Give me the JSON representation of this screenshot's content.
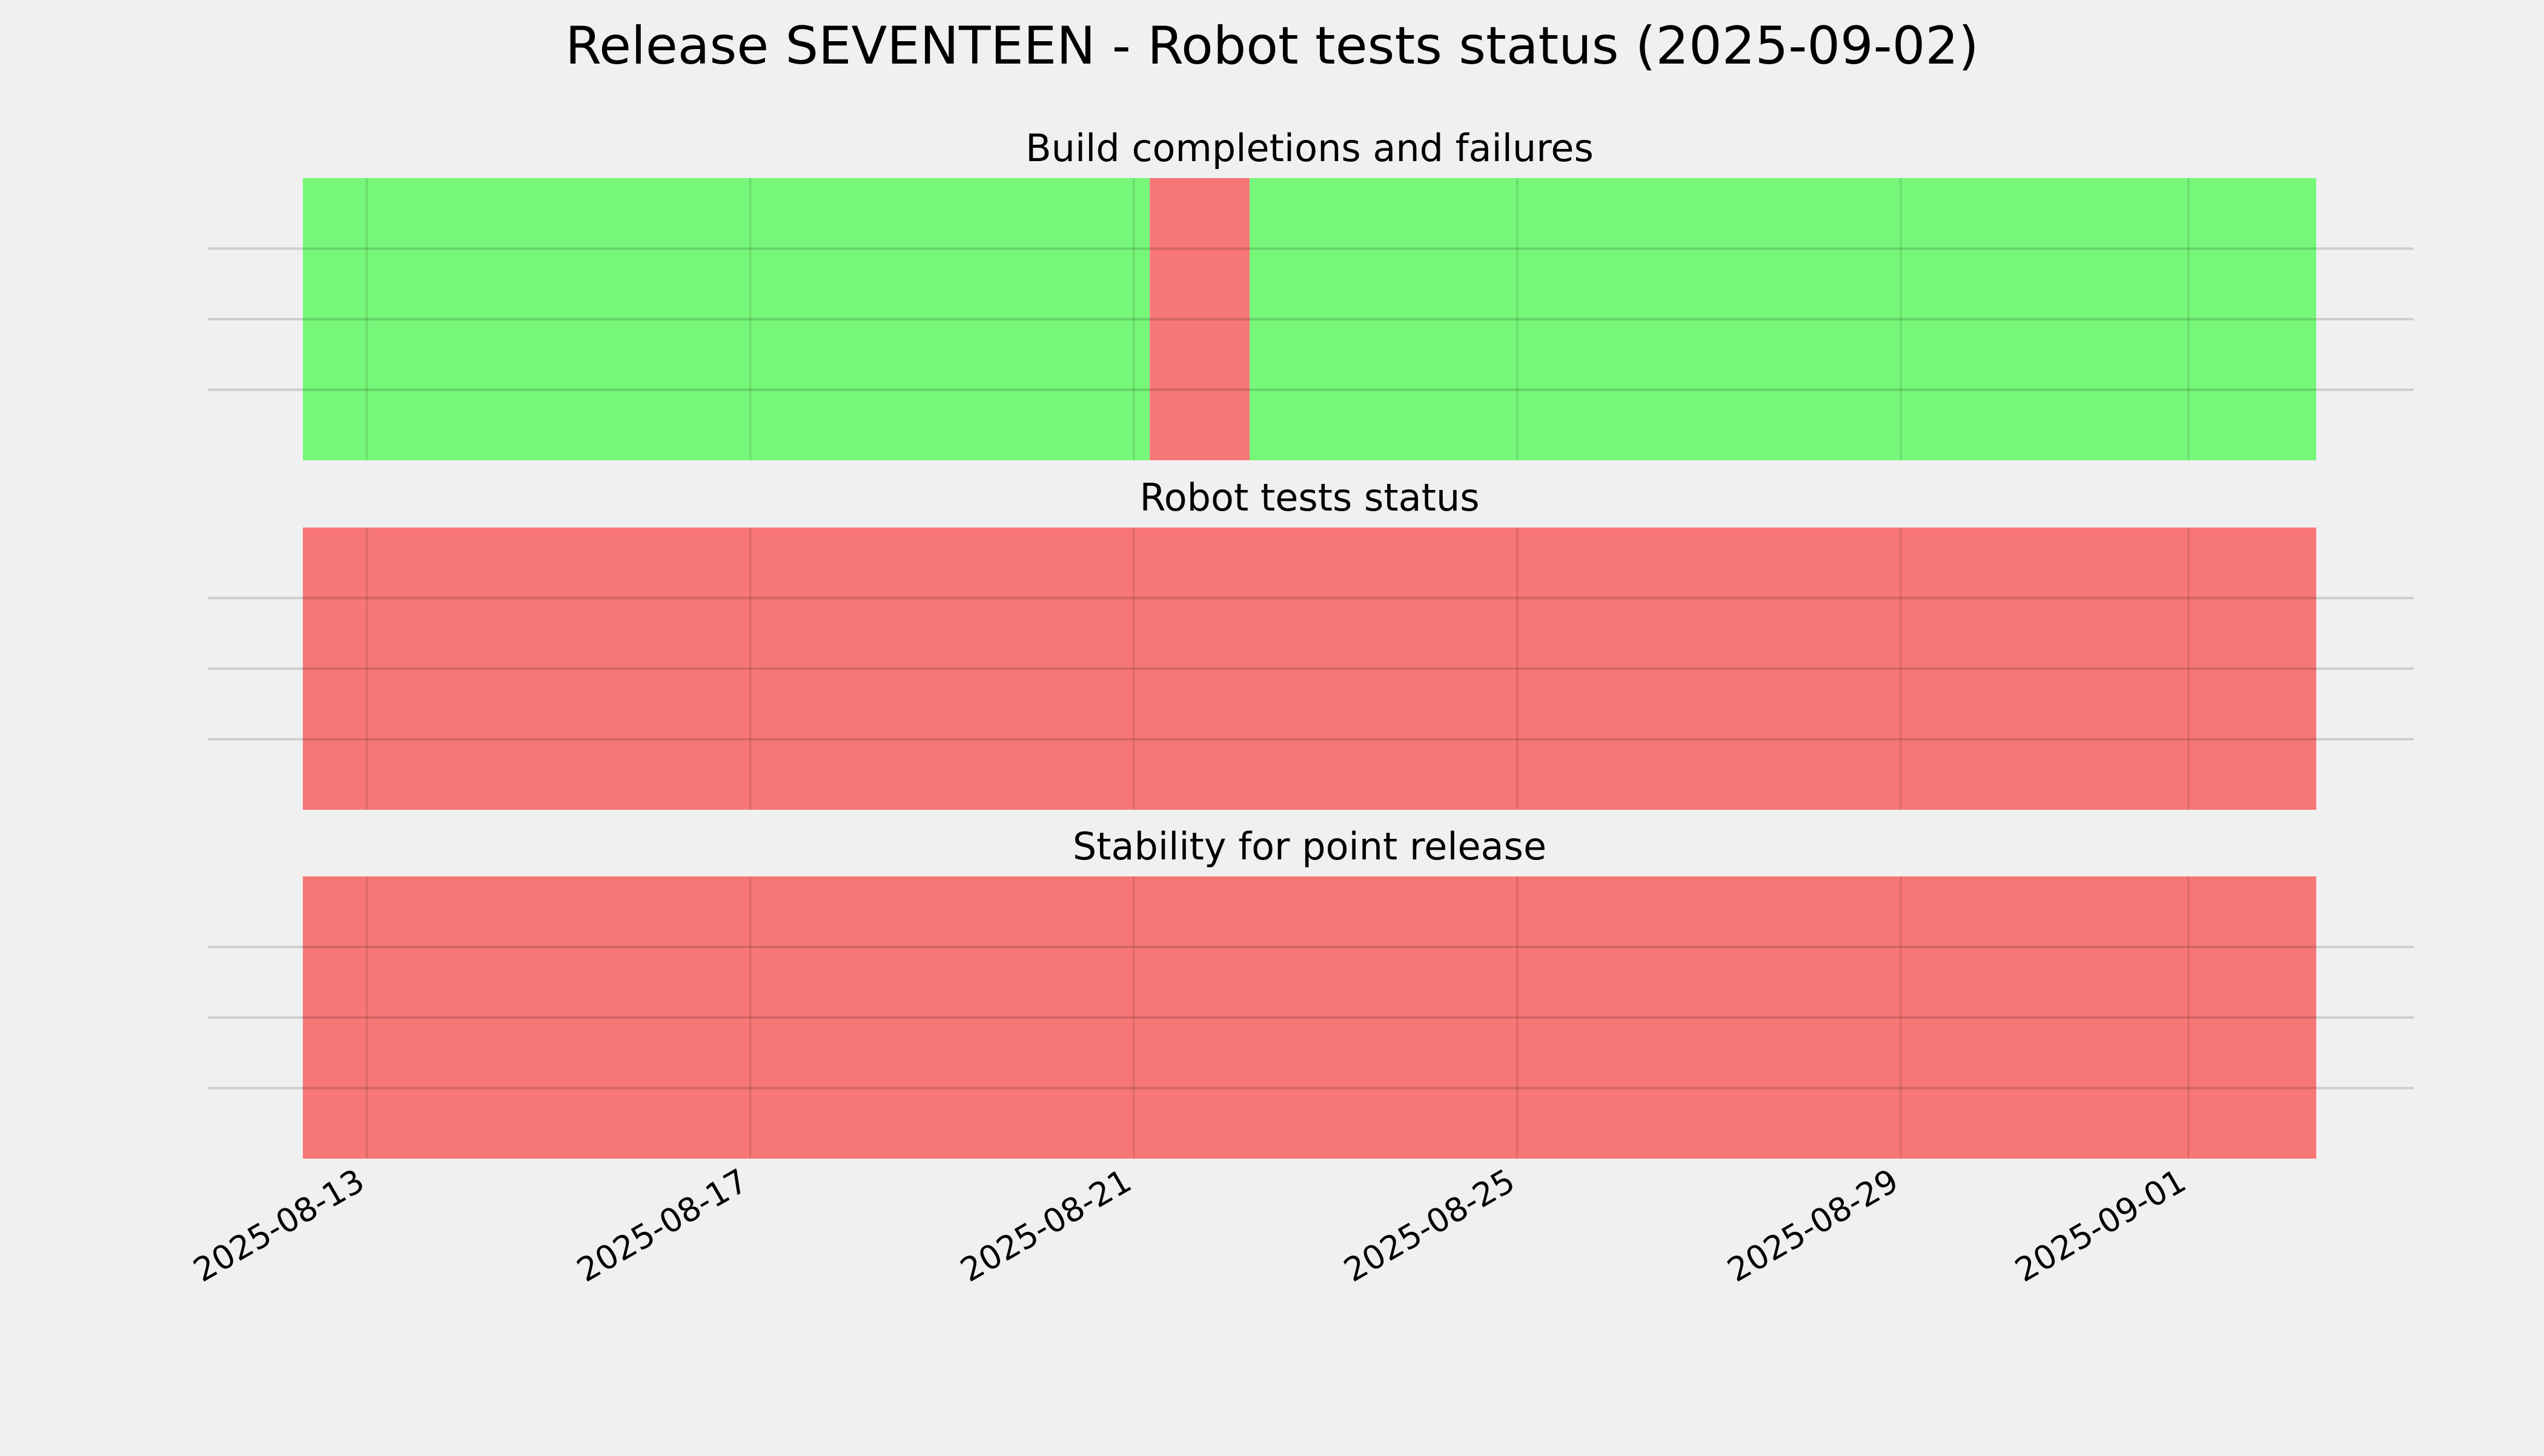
{
  "figure": {
    "title": "Release SEVENTEEN - Robot tests status (2025-09-02)",
    "background": "#f0f0f0"
  },
  "colors": {
    "pass": "#77f77a",
    "fail": "#f77777",
    "grid": "#000000"
  },
  "chart_data": [
    {
      "type": "timeline",
      "title": "Build completions and failures",
      "xlim": [
        "2025-08-12T08:00",
        "2025-09-02T08:00"
      ],
      "grid": true,
      "segments": [
        {
          "start": "2025-08-12T08:00",
          "end": "2025-08-21T04:00",
          "status": "pass"
        },
        {
          "start": "2025-08-21T04:00",
          "end": "2025-08-22T05:00",
          "status": "fail"
        },
        {
          "start": "2025-08-22T05:00",
          "end": "2025-09-02T08:00",
          "status": "pass"
        }
      ]
    },
    {
      "type": "timeline",
      "title": "Robot tests status",
      "xlim": [
        "2025-08-12T08:00",
        "2025-09-02T08:00"
      ],
      "grid": true,
      "segments": [
        {
          "start": "2025-08-12T08:00",
          "end": "2025-09-02T08:00",
          "status": "fail"
        }
      ]
    },
    {
      "type": "timeline",
      "title": "Stability for point release",
      "xlim": [
        "2025-08-12T08:00",
        "2025-09-02T08:00"
      ],
      "grid": true,
      "segments": [
        {
          "start": "2025-08-12T08:00",
          "end": "2025-09-02T08:00",
          "status": "fail"
        }
      ]
    }
  ],
  "x_ticks": [
    "2025-08-13",
    "2025-08-17",
    "2025-08-21",
    "2025-08-25",
    "2025-08-29",
    "2025-09-01"
  ]
}
